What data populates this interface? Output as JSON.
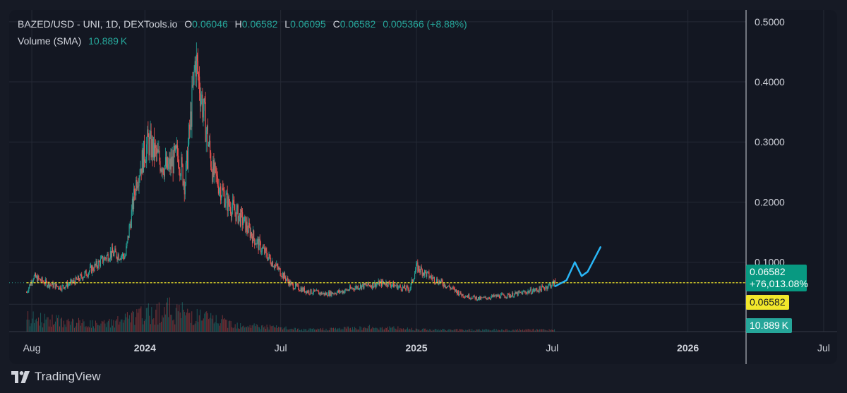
{
  "legend": {
    "symbol": "BAZED/USD - UNI, 1D, DEXTools.io",
    "o_label": "O",
    "o_value": "0.06046",
    "h_label": "H",
    "h_value": "0.06582",
    "l_label": "L",
    "l_value": "0.06095",
    "c_label": "C",
    "c_value": "0.06582",
    "change": "0.005366 (+8.88%)",
    "volume_label": "Volume (SMA)",
    "volume_value": "10.889 K"
  },
  "price_tags": {
    "last_price": "0.06582",
    "last_change": "+76,013.08%",
    "marker_price": "0.06582",
    "volume_tag": "10.889 K"
  },
  "footer": {
    "brand": "TradingView"
  },
  "colors": {
    "up": "#26a69a",
    "down": "#ef5350",
    "highlight_line": "#f2e72b",
    "drawing": "#29b6f6",
    "grid": "#252a36",
    "axis_text": "#d1d4dc"
  },
  "chart_data": {
    "type": "line",
    "subtype": "candlestick",
    "title": "BAZED/USD - UNI, 1D, DEXTools.io",
    "y_ticks": [
      "0.1000",
      "0.2000",
      "0.3000",
      "0.4000",
      "0.5000"
    ],
    "y_tick_values": [
      0.1,
      0.2,
      0.3,
      0.4,
      0.5
    ],
    "ylim": [
      -0.0155,
      0.5738
    ],
    "x_ticks": [
      "Aug",
      "2024",
      "Jul",
      "2025",
      "Jul",
      "2026",
      "Jul"
    ],
    "x_tick_dates": [
      "2023-08",
      "2024-01",
      "2024-07",
      "2025-01",
      "2025-07",
      "2026-01",
      "2026-07"
    ],
    "x_tick_bold": [
      false,
      true,
      false,
      true,
      false,
      true,
      false
    ],
    "xlim": [
      "2023-07",
      "2026-08"
    ],
    "grid": true,
    "series": [
      {
        "name": "BAZED/USD",
        "x": [
          "2023-07-24",
          "2023-08-03",
          "2023-08-20",
          "2023-09-10",
          "2023-10-01",
          "2023-10-25",
          "2023-11-15",
          "2023-12-05",
          "2023-12-20",
          "2024-01-05",
          "2024-01-20",
          "2024-02-01",
          "2024-02-15",
          "2024-02-24",
          "2024-03-01",
          "2024-03-08",
          "2024-03-20",
          "2024-04-01",
          "2024-04-20",
          "2024-05-10",
          "2024-06-01",
          "2024-06-20",
          "2024-07-15",
          "2024-08-05",
          "2024-09-01",
          "2024-09-25",
          "2024-10-15",
          "2024-11-01",
          "2024-11-20",
          "2024-12-10",
          "2024-12-22",
          "2025-01-01",
          "2025-01-20",
          "2025-02-10",
          "2025-03-01",
          "2025-03-25",
          "2025-04-15",
          "2025-05-05",
          "2025-05-25",
          "2025-06-15",
          "2025-06-30",
          "2025-07-05"
        ],
        "y": [
          0.05,
          0.076,
          0.065,
          0.058,
          0.07,
          0.093,
          0.115,
          0.11,
          0.24,
          0.3,
          0.27,
          0.255,
          0.28,
          0.23,
          0.33,
          0.44,
          0.34,
          0.25,
          0.2,
          0.17,
          0.13,
          0.1,
          0.062,
          0.052,
          0.047,
          0.052,
          0.06,
          0.062,
          0.066,
          0.058,
          0.055,
          0.092,
          0.075,
          0.062,
          0.046,
          0.039,
          0.043,
          0.045,
          0.05,
          0.055,
          0.063,
          0.06582
        ]
      },
      {
        "name": "Projection",
        "x": [
          "2025-07-05",
          "2025-07-20",
          "2025-08-01",
          "2025-08-10",
          "2025-08-18",
          "2025-09-05"
        ],
        "y": [
          0.06,
          0.07,
          0.1,
          0.077,
          0.084,
          0.125
        ]
      },
      {
        "name": "Volume (SMA)",
        "x": [
          "2023-08",
          "2023-11",
          "2024-02",
          "2024-05",
          "2024-08",
          "2024-11",
          "2025-02",
          "2025-05"
        ],
        "y": [
          21,
          11,
          36,
          12,
          3,
          7,
          3,
          3
        ]
      }
    ],
    "reference_line": {
      "value": 0.06582
    }
  }
}
